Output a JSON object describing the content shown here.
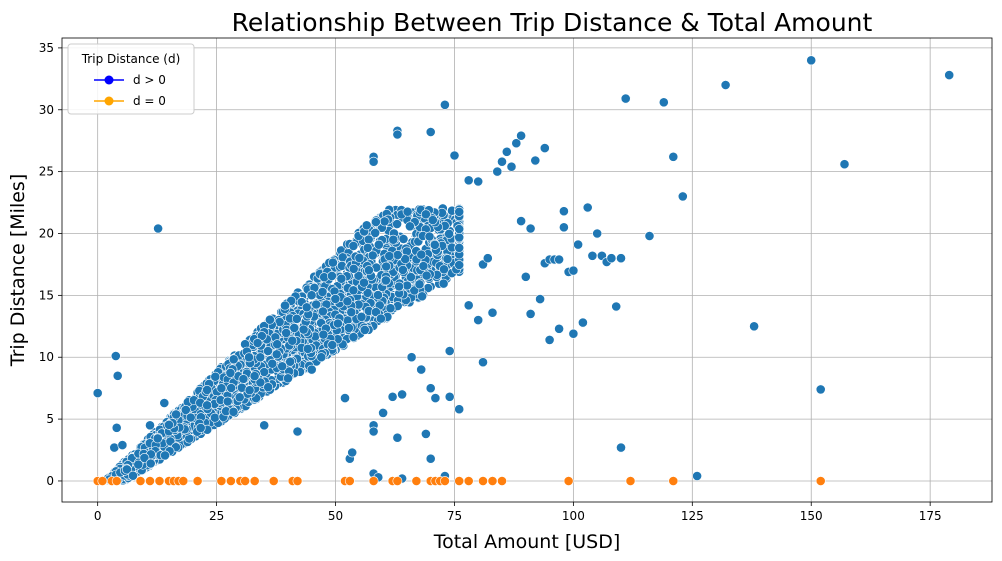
{
  "chart_data": {
    "type": "scatter",
    "title": "Relationship Between Trip Distance & Total Amount",
    "xlabel": "Total Amount [USD]",
    "ylabel": "Trip Distance [Miles]",
    "xlim": [
      -7.5,
      188
    ],
    "ylim": [
      -1.7,
      35.8
    ],
    "xticks": [
      0,
      25,
      50,
      75,
      100,
      125,
      150,
      175
    ],
    "yticks": [
      0,
      5,
      10,
      15,
      20,
      25,
      30,
      35
    ],
    "grid": true,
    "legend": {
      "title": "Trip Distance (d)",
      "placement": "top-left",
      "entries": [
        {
          "label": "d > 0",
          "color": "#0000ff"
        },
        {
          "label": "d = 0",
          "color": "#ffa500"
        }
      ]
    },
    "series": [
      {
        "color": "#1f77b4",
        "points": [
          [
            0,
            7.1
          ],
          [
            3.8,
            10.1
          ],
          [
            4.2,
            8.5
          ],
          [
            3.5,
            2.7
          ],
          [
            4.0,
            4.3
          ],
          [
            5.2,
            2.9
          ],
          [
            11,
            4.5
          ],
          [
            12.7,
            20.4
          ],
          [
            14,
            6.3
          ],
          [
            26,
            7.5
          ],
          [
            35,
            4.5
          ],
          [
            40,
            8.3
          ],
          [
            42,
            4.0
          ],
          [
            45,
            9.0
          ],
          [
            47,
            10.0
          ],
          [
            52,
            6.7
          ],
          [
            53,
            1.8
          ],
          [
            53.5,
            2.3
          ],
          [
            58,
            4.5
          ],
          [
            58,
            4.0
          ],
          [
            58,
            0.6
          ],
          [
            59,
            0.3
          ],
          [
            60,
            5.5
          ],
          [
            62,
            6.8
          ],
          [
            63,
            3.5
          ],
          [
            64,
            7.0
          ],
          [
            64,
            0.2
          ],
          [
            66,
            10.0
          ],
          [
            68,
            9.0
          ],
          [
            69,
            3.8
          ],
          [
            70,
            1.8
          ],
          [
            70,
            7.5
          ],
          [
            71,
            6.7
          ],
          [
            73,
            0.4
          ],
          [
            73,
            30.4
          ],
          [
            74,
            10.5
          ],
          [
            75,
            26.3
          ],
          [
            76,
            5.8
          ],
          [
            74,
            6.8
          ],
          [
            70,
            28.2
          ],
          [
            63,
            28.3
          ],
          [
            63,
            28.0
          ],
          [
            58,
            26.2
          ],
          [
            58,
            25.8
          ],
          [
            78,
            24.3
          ],
          [
            80,
            24.2
          ],
          [
            81,
            17.5
          ],
          [
            82,
            18.0
          ],
          [
            80,
            13.0
          ],
          [
            78,
            14.2
          ],
          [
            81,
            9.6
          ],
          [
            83,
            13.6
          ],
          [
            84,
            25.0
          ],
          [
            85,
            25.8
          ],
          [
            86,
            26.6
          ],
          [
            87,
            25.4
          ],
          [
            88,
            27.3
          ],
          [
            89,
            27.9
          ],
          [
            89,
            21.0
          ],
          [
            90,
            16.5
          ],
          [
            91,
            13.5
          ],
          [
            91,
            20.4
          ],
          [
            92,
            25.9
          ],
          [
            93,
            14.7
          ],
          [
            94,
            26.9
          ],
          [
            94,
            17.6
          ],
          [
            95,
            11.4
          ],
          [
            95,
            17.9
          ],
          [
            96,
            17.9
          ],
          [
            97,
            12.3
          ],
          [
            97,
            17.9
          ],
          [
            98,
            21.8
          ],
          [
            98,
            20.5
          ],
          [
            99,
            16.9
          ],
          [
            100,
            17.0
          ],
          [
            100,
            11.9
          ],
          [
            101,
            19.1
          ],
          [
            102,
            12.8
          ],
          [
            103,
            22.1
          ],
          [
            104,
            18.2
          ],
          [
            105,
            20.0
          ],
          [
            106,
            18.2
          ],
          [
            107,
            17.7
          ],
          [
            108,
            18.0
          ],
          [
            109,
            14.1
          ],
          [
            110,
            18.0
          ],
          [
            110,
            2.7
          ],
          [
            111,
            30.9
          ],
          [
            116,
            19.8
          ],
          [
            119,
            30.6
          ],
          [
            121,
            26.2
          ],
          [
            123,
            23.0
          ],
          [
            126,
            0.4
          ],
          [
            132,
            32.0
          ],
          [
            138,
            12.5
          ],
          [
            150,
            34.0
          ],
          [
            152,
            7.4
          ],
          [
            157,
            25.6
          ],
          [
            179,
            32.8
          ]
        ]
      },
      {
        "color": "#ff7f0e",
        "points": [
          [
            0,
            0
          ],
          [
            1,
            0
          ],
          [
            3,
            0
          ],
          [
            4,
            0
          ],
          [
            9,
            0
          ],
          [
            11,
            0
          ],
          [
            13,
            0
          ],
          [
            15,
            0
          ],
          [
            16,
            0
          ],
          [
            17,
            0
          ],
          [
            18,
            0
          ],
          [
            21,
            0
          ],
          [
            26,
            0
          ],
          [
            28,
            0
          ],
          [
            30,
            0
          ],
          [
            31,
            0
          ],
          [
            33,
            0
          ],
          [
            37,
            0
          ],
          [
            41,
            0
          ],
          [
            42,
            0
          ],
          [
            52,
            0
          ],
          [
            53,
            0
          ],
          [
            58,
            0
          ],
          [
            62,
            0
          ],
          [
            63,
            0
          ],
          [
            67,
            0
          ],
          [
            70,
            0
          ],
          [
            71,
            0
          ],
          [
            72,
            0
          ],
          [
            73,
            0
          ],
          [
            76,
            0
          ],
          [
            78,
            0
          ],
          [
            81,
            0
          ],
          [
            83,
            0
          ],
          [
            85,
            0
          ],
          [
            99,
            0
          ],
          [
            112,
            0
          ],
          [
            121,
            0
          ],
          [
            152,
            0
          ]
        ]
      }
    ]
  }
}
